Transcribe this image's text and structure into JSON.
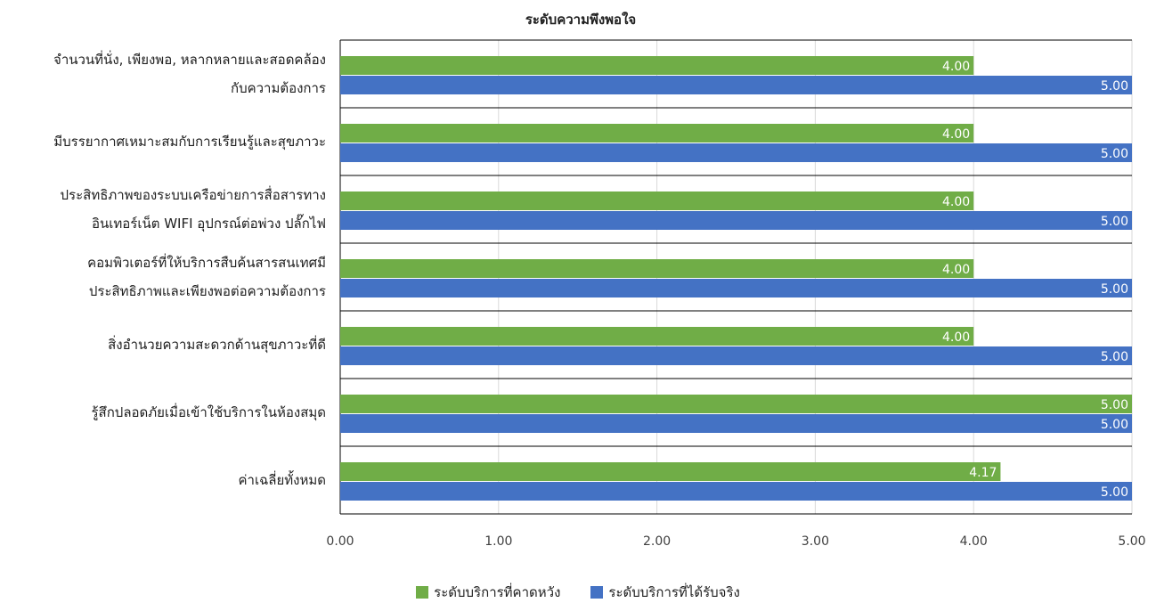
{
  "chart_data": {
    "type": "bar",
    "orientation": "horizontal",
    "title": "ระดับความพึงพอใจ",
    "categories": [
      [
        "จำนวนที่นั่ง, เพียงพอ, หลากหลายและสอดคล้อง",
        "กับความต้องการ"
      ],
      [
        "มีบรรยากาศเหมาะสมกับการเรียนรู้และสุขภาวะ"
      ],
      [
        "ประสิทธิภาพของระบบเครือข่ายการสื่อสารทาง",
        "อินเทอร์เน็ต WIFI อุปกรณ์ต่อพ่วง ปลั๊กไฟ"
      ],
      [
        "คอมพิวเตอร์ที่ให้บริการสืบค้นสารสนเทศมี",
        "ประสิทธิภาพและเพียงพอต่อความต้องการ"
      ],
      [
        "สิ่งอำนวยความสะดวกด้านสุขภาวะที่ดี"
      ],
      [
        "รู้สึกปลอดภัยเมื่อเข้าใช้บริการในห้องสมุด"
      ],
      [
        "ค่าเฉลี่ยทั้งหมด"
      ]
    ],
    "series": [
      {
        "name": "ระดับบริการที่คาดหวัง",
        "color": "#70AD47",
        "values": [
          4.0,
          4.0,
          4.0,
          4.0,
          4.0,
          5.0,
          4.17
        ]
      },
      {
        "name": "ระดับบริการที่ได้รับจริง",
        "color": "#4472C4",
        "values": [
          5.0,
          5.0,
          5.0,
          5.0,
          5.0,
          5.0,
          5.0
        ]
      }
    ],
    "xlim": [
      0,
      5
    ],
    "xticks": [
      "0.00",
      "1.00",
      "2.00",
      "3.00",
      "4.00",
      "5.00"
    ],
    "grid": true,
    "legend_position": "bottom"
  }
}
